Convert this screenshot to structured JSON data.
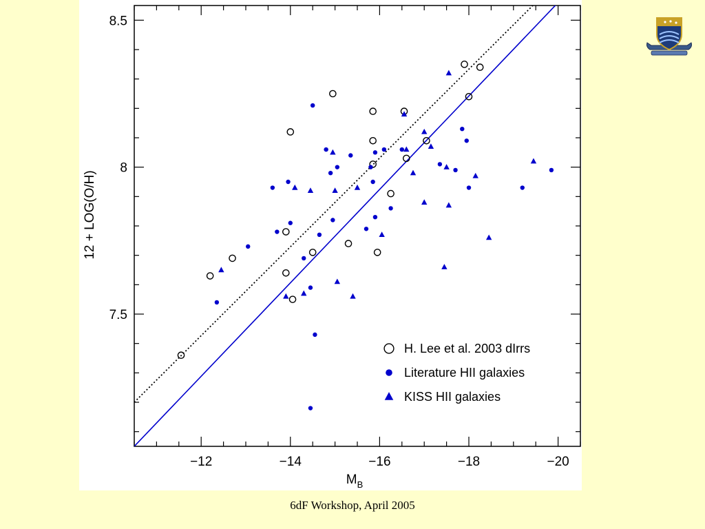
{
  "footer": {
    "text": "6dF Workshop, April 2005"
  },
  "chart_data": {
    "type": "scatter",
    "xlabel": "M",
    "xlabel_sub": "B",
    "ylabel": "12 + LOG(O/H)",
    "xlim": [
      -10.5,
      -20.5
    ],
    "ylim": [
      7.05,
      8.55
    ],
    "x_ticks": [
      -12,
      -14,
      -16,
      -18,
      -20
    ],
    "x_tick_labels": [
      "−12",
      "−14",
      "−16",
      "−18",
      "−20"
    ],
    "y_ticks": [
      7.5,
      8,
      8.5
    ],
    "y_tick_labels": [
      "7.5",
      "8",
      "8.5"
    ],
    "x_minor_step": 0.5,
    "y_minor_step": 0.1,
    "legend_position": "bottom-right",
    "colors": {
      "series_blue": "#0000cc",
      "open_circles": "#000000"
    },
    "series": [
      {
        "name": "H. Lee et al. 2003 dIrrs",
        "marker": "open-circle",
        "points": [
          [
            -11.55,
            7.36
          ],
          [
            -12.2,
            7.63
          ],
          [
            -12.7,
            7.69
          ],
          [
            -13.9,
            7.78
          ],
          [
            -13.9,
            7.64
          ],
          [
            -14.0,
            8.12
          ],
          [
            -14.05,
            7.55
          ],
          [
            -14.5,
            7.71
          ],
          [
            -14.95,
            8.25
          ],
          [
            -15.3,
            7.74
          ],
          [
            -15.85,
            8.19
          ],
          [
            -15.85,
            8.09
          ],
          [
            -15.85,
            8.01
          ],
          [
            -15.95,
            7.71
          ],
          [
            -16.25,
            7.91
          ],
          [
            -16.55,
            8.19
          ],
          [
            -16.6,
            8.03
          ],
          [
            -17.05,
            8.09
          ],
          [
            -17.9,
            8.35
          ],
          [
            -18.0,
            8.24
          ],
          [
            -18.25,
            8.34
          ]
        ]
      },
      {
        "name": "Literature HII galaxies",
        "marker": "filled-circle",
        "points": [
          [
            -12.35,
            7.54
          ],
          [
            -13.05,
            7.73
          ],
          [
            -13.6,
            7.93
          ],
          [
            -13.7,
            7.78
          ],
          [
            -13.95,
            7.95
          ],
          [
            -14.0,
            7.81
          ],
          [
            -14.3,
            7.69
          ],
          [
            -14.45,
            7.59
          ],
          [
            -14.45,
            7.18
          ],
          [
            -14.5,
            8.21
          ],
          [
            -14.55,
            7.43
          ],
          [
            -14.65,
            7.77
          ],
          [
            -14.8,
            8.06
          ],
          [
            -14.9,
            7.98
          ],
          [
            -14.95,
            7.82
          ],
          [
            -15.05,
            8.0
          ],
          [
            -15.35,
            8.04
          ],
          [
            -15.7,
            7.79
          ],
          [
            -15.8,
            8.0
          ],
          [
            -15.85,
            7.95
          ],
          [
            -15.9,
            8.05
          ],
          [
            -15.9,
            7.83
          ],
          [
            -16.1,
            8.06
          ],
          [
            -16.25,
            7.86
          ],
          [
            -16.5,
            8.06
          ],
          [
            -17.35,
            8.01
          ],
          [
            -17.7,
            7.99
          ],
          [
            -17.85,
            8.13
          ],
          [
            -17.95,
            8.09
          ],
          [
            -18.0,
            7.93
          ],
          [
            -19.2,
            7.93
          ],
          [
            -19.85,
            7.99
          ]
        ]
      },
      {
        "name": "KISS HII galaxies",
        "marker": "filled-triangle",
        "points": [
          [
            -12.45,
            7.65
          ],
          [
            -13.9,
            7.56
          ],
          [
            -14.1,
            7.93
          ],
          [
            -14.3,
            7.57
          ],
          [
            -14.45,
            7.92
          ],
          [
            -14.95,
            8.05
          ],
          [
            -15.0,
            7.92
          ],
          [
            -15.05,
            7.61
          ],
          [
            -15.4,
            7.56
          ],
          [
            -15.5,
            7.93
          ],
          [
            -16.05,
            7.77
          ],
          [
            -16.55,
            8.18
          ],
          [
            -16.6,
            8.06
          ],
          [
            -16.75,
            7.98
          ],
          [
            -17.0,
            7.88
          ],
          [
            -17.0,
            8.12
          ],
          [
            -17.15,
            8.07
          ],
          [
            -17.45,
            7.66
          ],
          [
            -17.5,
            8.0
          ],
          [
            -17.55,
            7.87
          ],
          [
            -17.55,
            8.32
          ],
          [
            -18.15,
            7.97
          ],
          [
            -18.45,
            7.76
          ],
          [
            -19.45,
            8.02
          ]
        ]
      }
    ],
    "lines": [
      {
        "style": "dotted",
        "color": "#000000",
        "x": [
          -10.5,
          -19.5
        ],
        "y": [
          7.2,
          8.56
        ]
      },
      {
        "style": "solid",
        "color": "#0000cc",
        "x": [
          -10.5,
          -20.0
        ],
        "y": [
          7.05,
          8.56
        ]
      }
    ]
  }
}
